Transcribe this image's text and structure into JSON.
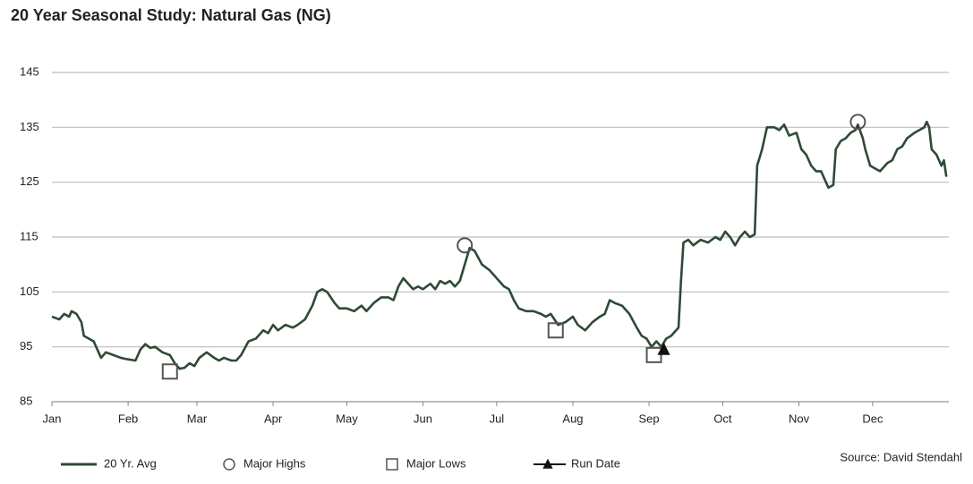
{
  "chart_data": {
    "type": "line",
    "title": "20 Year Seasonal Study: Natural Gas (NG)",
    "source": "Source: David Stendahl",
    "xlim": [
      0,
      365
    ],
    "xticks": [
      {
        "value": 0,
        "label": "Jan"
      },
      {
        "value": 31,
        "label": "Feb"
      },
      {
        "value": 59,
        "label": "Mar"
      },
      {
        "value": 90,
        "label": "Apr"
      },
      {
        "value": 120,
        "label": "May"
      },
      {
        "value": 151,
        "label": "Jun"
      },
      {
        "value": 181,
        "label": "Jul"
      },
      {
        "value": 212,
        "label": "Aug"
      },
      {
        "value": 243,
        "label": "Sep"
      },
      {
        "value": 273,
        "label": "Oct"
      },
      {
        "value": 304,
        "label": "Nov"
      },
      {
        "value": 334,
        "label": "Dec"
      }
    ],
    "ylim": [
      85,
      145
    ],
    "yticks": [
      85,
      95,
      105,
      115,
      125,
      135,
      145
    ],
    "grid": true,
    "series": [
      {
        "name": "20 Yr. Avg",
        "color": "#2e4a35",
        "marker": "line",
        "x": [
          0,
          3,
          5,
          7,
          8,
          10,
          12,
          13,
          15,
          17,
          19,
          20,
          22,
          25,
          28,
          30,
          34,
          36,
          38,
          40,
          42,
          45,
          48,
          50,
          52,
          54,
          56,
          58,
          60,
          63,
          66,
          68,
          70,
          73,
          75,
          77,
          80,
          83,
          86,
          88,
          90,
          92,
          95,
          98,
          100,
          103,
          106,
          108,
          110,
          112,
          115,
          117,
          120,
          123,
          126,
          128,
          131,
          134,
          137,
          139,
          141,
          143,
          145,
          147,
          149,
          151,
          154,
          156,
          158,
          160,
          162,
          164,
          166,
          168,
          170,
          172,
          175,
          178,
          181,
          184,
          186,
          188,
          190,
          193,
          196,
          199,
          201,
          203,
          206,
          209,
          212,
          214,
          217,
          220,
          223,
          225,
          227,
          229,
          232,
          235,
          238,
          240,
          242,
          244,
          246,
          248,
          250,
          252,
          255,
          256,
          257,
          259,
          261,
          264,
          267,
          270,
          272,
          274,
          276,
          278,
          280,
          282,
          284,
          286,
          287,
          289,
          291,
          294,
          296,
          298,
          300,
          303,
          305,
          307,
          309,
          311,
          313,
          315,
          316,
          318,
          319,
          321,
          323,
          325,
          327,
          328,
          330,
          331,
          333,
          335,
          337,
          340,
          342,
          344,
          346,
          348,
          351,
          353,
          355,
          356,
          357,
          358,
          360,
          362,
          363,
          364
        ],
        "values": [
          100.5,
          100,
          101,
          100.5,
          101.5,
          101,
          99.5,
          97,
          96.5,
          96,
          94,
          93,
          94,
          93.5,
          93,
          92.8,
          92.5,
          94.5,
          95.5,
          94.8,
          95,
          94,
          93.5,
          92,
          91,
          91.2,
          92,
          91.5,
          93,
          94,
          93,
          92.5,
          93,
          92.5,
          92.5,
          93.5,
          96,
          96.5,
          98,
          97.5,
          99,
          98,
          99,
          98.5,
          99,
          100,
          102.5,
          105,
          105.5,
          105,
          103,
          102,
          102,
          101.5,
          102.5,
          101.5,
          103,
          104,
          104,
          103.5,
          106,
          107.5,
          106.5,
          105.5,
          106,
          105.5,
          106.5,
          105.5,
          107,
          106.5,
          107,
          106,
          107,
          110,
          113,
          112.5,
          110,
          109,
          107.5,
          106,
          105.5,
          103.5,
          102,
          101.5,
          101.5,
          101,
          100.5,
          101,
          99,
          99.5,
          100.5,
          99,
          98,
          99.5,
          100.5,
          101,
          103.5,
          103,
          102.5,
          101,
          98.5,
          97,
          96.5,
          95,
          96,
          95,
          96.5,
          97,
          98.5,
          107,
          114,
          114.5,
          113.5,
          114.5,
          114,
          115,
          114.5,
          116,
          115,
          113.5,
          115,
          116,
          115,
          115.5,
          128,
          131,
          135,
          135,
          134.5,
          135.5,
          133.5,
          134,
          131,
          130,
          128,
          127,
          127,
          125,
          124,
          124.5,
          131,
          132.5,
          133,
          134,
          134.5,
          135.5,
          133,
          131,
          128,
          127.5,
          127,
          128.5,
          129,
          131,
          131.5,
          133,
          134,
          134.5,
          135,
          136,
          135,
          131,
          130,
          128,
          129,
          126
        ]
      },
      {
        "name": "Major Highs",
        "color": "#555555",
        "marker": "circle",
        "x": [
          168,
          328
        ],
        "values": [
          113.5,
          136
        ]
      },
      {
        "name": "Major Lows",
        "color": "#555555",
        "marker": "square",
        "x": [
          48,
          205,
          245
        ],
        "values": [
          90.5,
          98,
          93.5
        ]
      },
      {
        "name": "Run Date",
        "color": "#111111",
        "marker": "triangle",
        "x": [
          249
        ],
        "values": [
          94.5
        ]
      }
    ]
  }
}
